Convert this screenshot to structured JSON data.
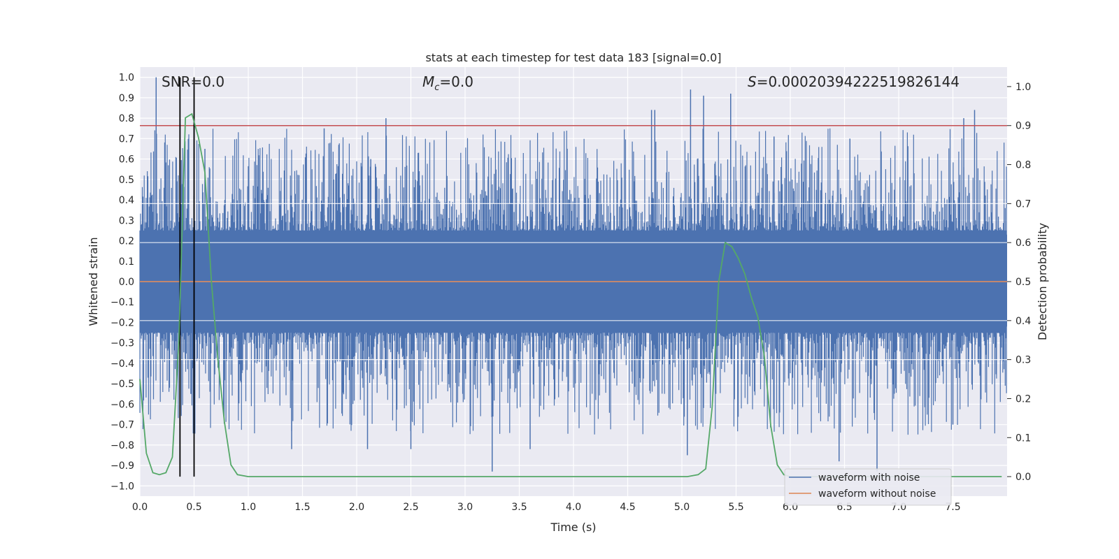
{
  "chart_data": {
    "type": "line",
    "title": "stats at each timestep for test data 183 [signal=0.0]",
    "xlabel": "Time (s)",
    "ylabel": "Whitened strain",
    "y2label": "Detection probability",
    "xlim": [
      0.0,
      8.0
    ],
    "ylim": [
      -1.05,
      1.05
    ],
    "y2lim": [
      -0.05,
      1.05
    ],
    "grid": true,
    "legend_position": "lower-right",
    "x_ticks": [
      0.0,
      0.5,
      1.0,
      1.5,
      2.0,
      2.5,
      3.0,
      3.5,
      4.0,
      4.5,
      5.0,
      5.5,
      6.0,
      6.5,
      7.0,
      7.5
    ],
    "x_tick_labels": [
      "0.0",
      "0.5",
      "1.0",
      "1.5",
      "2.0",
      "2.5",
      "3.0",
      "3.5",
      "4.0",
      "4.5",
      "5.0",
      "5.5",
      "6.0",
      "6.5",
      "7.0",
      "7.5"
    ],
    "y_ticks": [
      1.0,
      0.9,
      0.8,
      0.7,
      0.6,
      0.5,
      0.4,
      0.3,
      0.2,
      0.1,
      0.0,
      -0.1,
      -0.2,
      -0.3,
      -0.4,
      -0.5,
      -0.6,
      -0.7,
      -0.8,
      -0.9,
      -1.0
    ],
    "y_tick_labels": [
      "1.0",
      "0.9",
      "0.8",
      "0.7",
      "0.6",
      "0.5",
      "0.4",
      "0.3",
      "0.2",
      "0.1",
      "0.0",
      "−0.1",
      "−0.2",
      "−0.3",
      "−0.4",
      "−0.5",
      "−0.6",
      "−0.7",
      "−0.8",
      "−0.9",
      "−1.0"
    ],
    "y2_ticks": [
      1.0,
      0.9,
      0.8,
      0.7,
      0.6,
      0.5,
      0.4,
      0.3,
      0.2,
      0.1,
      0.0
    ],
    "y2_tick_labels": [
      "1.0",
      "0.9",
      "0.8",
      "0.7",
      "0.6",
      "0.5",
      "0.4",
      "0.3",
      "0.2",
      "0.1",
      "0.0"
    ],
    "annotations": {
      "snr": "SNR=0.0",
      "mc_symbol": "M",
      "mc_subscript": "c",
      "mc_value": "=0.0",
      "s_symbol": "S",
      "s_value": "=0.00020394222519826144"
    },
    "series": [
      {
        "name": "waveform with noise",
        "color": "#4c72b0",
        "axis": "left",
        "description_peaks": {
          "max": 1.0,
          "min": -0.93
        },
        "spikes_up": [
          [
            0.15,
            1.0
          ],
          [
            0.37,
            0.77
          ],
          [
            0.5,
            0.76
          ],
          [
            0.6,
            0.65
          ],
          [
            1.7,
            0.75
          ],
          [
            2.27,
            0.8
          ],
          [
            2.13,
            0.6
          ],
          [
            4.72,
            0.84
          ],
          [
            4.75,
            0.84
          ],
          [
            5.08,
            0.94
          ],
          [
            5.2,
            0.91
          ],
          [
            5.45,
            0.92
          ],
          [
            5.85,
            0.71
          ],
          [
            7.7,
            0.84
          ],
          [
            7.6,
            0.8
          ],
          [
            6.55,
            0.7
          ]
        ],
        "spikes_down": [
          [
            3.25,
            -0.93
          ],
          [
            6.8,
            -0.93
          ],
          [
            6.45,
            -0.88
          ],
          [
            5.05,
            -0.85
          ],
          [
            3.6,
            -0.82
          ],
          [
            1.4,
            -0.82
          ],
          [
            2.1,
            -0.82
          ],
          [
            2.5,
            -0.82
          ],
          [
            0.47,
            -0.55
          ],
          [
            7.5,
            -0.7
          ]
        ]
      },
      {
        "name": "waveform without noise",
        "color": "#dd8452",
        "axis": "left",
        "x": [
          0.0,
          8.0
        ],
        "y": [
          0.0,
          0.0
        ]
      },
      {
        "name": "",
        "color": "#55a868",
        "axis": "right",
        "x": [
          0.0,
          0.06,
          0.12,
          0.18,
          0.24,
          0.3,
          0.36,
          0.42,
          0.48,
          0.54,
          0.6,
          0.66,
          0.72,
          0.78,
          0.84,
          0.9,
          1.0,
          2.0,
          3.0,
          4.0,
          4.9,
          5.05,
          5.15,
          5.22,
          5.28,
          5.34,
          5.4,
          5.46,
          5.52,
          5.58,
          5.64,
          5.7,
          5.76,
          5.82,
          5.88,
          5.94,
          6.0,
          7.0,
          7.95
        ],
        "y": [
          0.25,
          0.06,
          0.01,
          0.005,
          0.01,
          0.05,
          0.35,
          0.92,
          0.93,
          0.87,
          0.78,
          0.5,
          0.3,
          0.14,
          0.03,
          0.005,
          0.0,
          0.0,
          0.0,
          0.0,
          0.0,
          0.0,
          0.005,
          0.02,
          0.18,
          0.5,
          0.6,
          0.59,
          0.56,
          0.52,
          0.46,
          0.41,
          0.31,
          0.13,
          0.03,
          0.005,
          0.0,
          0.0,
          0.0
        ]
      }
    ],
    "hlines": [
      {
        "axis": "right",
        "y": 0.9,
        "color": "#c44e52"
      }
    ],
    "vlines": [
      {
        "x": 0.37,
        "color": "#000000"
      },
      {
        "x": 0.5,
        "color": "#000000"
      }
    ]
  }
}
